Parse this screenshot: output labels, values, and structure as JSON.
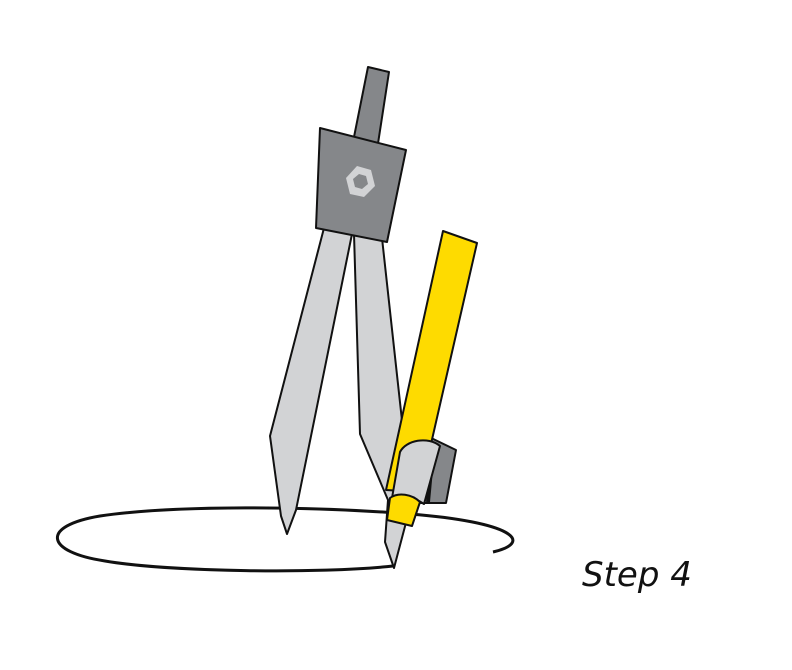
{
  "diagram": {
    "caption": "Step 4",
    "colors": {
      "compass_dark": "#85878a",
      "compass_leg": "#d2d3d5",
      "hex_nut": "#d2d3d5",
      "hex_nut_inner": "#85878a",
      "pencil": "#fedb00",
      "outline": "#111111",
      "background": "#ffffff"
    },
    "icons": [
      "compass-icon",
      "pencil-icon",
      "hex-nut-icon"
    ]
  }
}
